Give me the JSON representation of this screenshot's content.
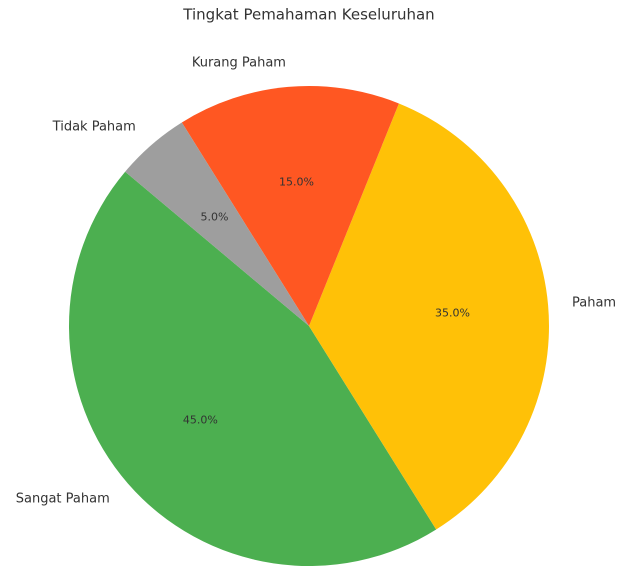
{
  "chart_data": {
    "type": "pie",
    "title": "Tingkat Pemahaman Keseluruhan",
    "categories": [
      "Sangat Paham",
      "Paham",
      "Kurang Paham",
      "Tidak Paham"
    ],
    "values": [
      45,
      35,
      15,
      5
    ],
    "value_labels": [
      "45.0%",
      "35.0%",
      "15.0%",
      "5.0%"
    ],
    "colors": [
      "#4caf50",
      "#ffc107",
      "#ff5722",
      "#9e9e9e"
    ],
    "startangle": 140
  }
}
